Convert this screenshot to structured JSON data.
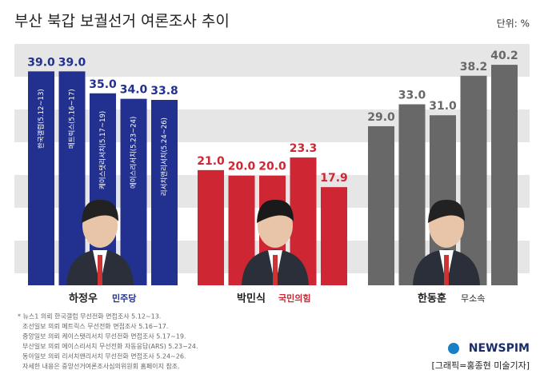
{
  "chart_data": {
    "type": "bar",
    "title": "부산 북갑 보궐선거 여론조사 추이",
    "unit_label": "단위: %",
    "categories": [
      "하정우",
      "박민식",
      "한동훈"
    ],
    "parties": [
      "민주당",
      "국민의힘",
      "무소속"
    ],
    "colors": [
      "#22318f",
      "#cf2633",
      "#686868"
    ],
    "ylim": [
      0,
      44
    ],
    "series": [
      {
        "name": "한국갤럽(5.12~13)",
        "values": [
          39.0,
          21.0,
          29.0
        ],
        "value_labels": [
          "39.0",
          "21.0",
          "29.0"
        ]
      },
      {
        "name": "메트릭스(5.16~17)",
        "values": [
          39.0,
          20.0,
          33.0
        ],
        "value_labels": [
          "39.0",
          "20.0",
          "33.0"
        ]
      },
      {
        "name": "케이스탯리서치(5.17~19)",
        "values": [
          35.0,
          20.0,
          31.0
        ],
        "value_labels": [
          "35.0",
          "20.0",
          "31.0"
        ]
      },
      {
        "name": "에이스리서치(5.23~24)",
        "values": [
          34.0,
          23.3,
          38.2
        ],
        "value_labels": [
          "34.0",
          "23.3",
          "38.2"
        ]
      },
      {
        "name": "리서치앤리서치(5.24~26)",
        "values": [
          33.8,
          17.9,
          40.2
        ],
        "value_labels": [
          "33.8",
          "17.9",
          "40.2"
        ]
      }
    ],
    "notes": [
      "* 뉴스1 의뢰 한국갤럽 무선전화 면접조사 5.12~13.",
      "조선일보 의뢰 메트릭스 무선전화 면접조사 5.16~17.",
      "중앙일보 의뢰 케이스탯리서치 무선전화 면접조사 5.17~19.",
      "부산일보 의뢰 에이스리서치 무선전화 자동응답(ARS) 5.23~24.",
      "동아일보 의뢰 리서치앤리서치 무선전화 면접조사 5.24~26.",
      "자세한 내용은 중앙선거여론조사심의위원회 홈페이지 참조."
    ],
    "source": "NEWSPIM",
    "credit": "[그래픽=홍종현 미술기자]"
  }
}
